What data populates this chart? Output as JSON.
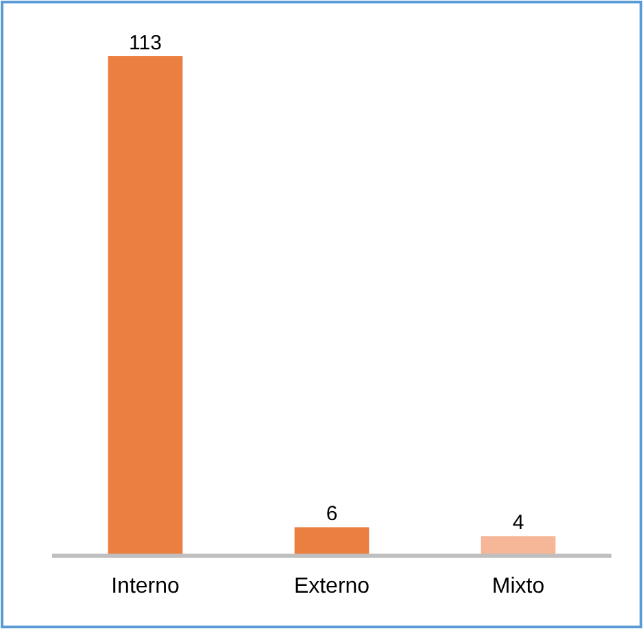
{
  "chart_data": {
    "type": "bar",
    "categories": [
      "Interno",
      "Externo",
      "Mixto"
    ],
    "values": [
      113,
      6,
      4
    ],
    "colors": [
      "#ea7f3f",
      "#ea7f3f",
      "#f5b797"
    ],
    "data_labels": true
  }
}
